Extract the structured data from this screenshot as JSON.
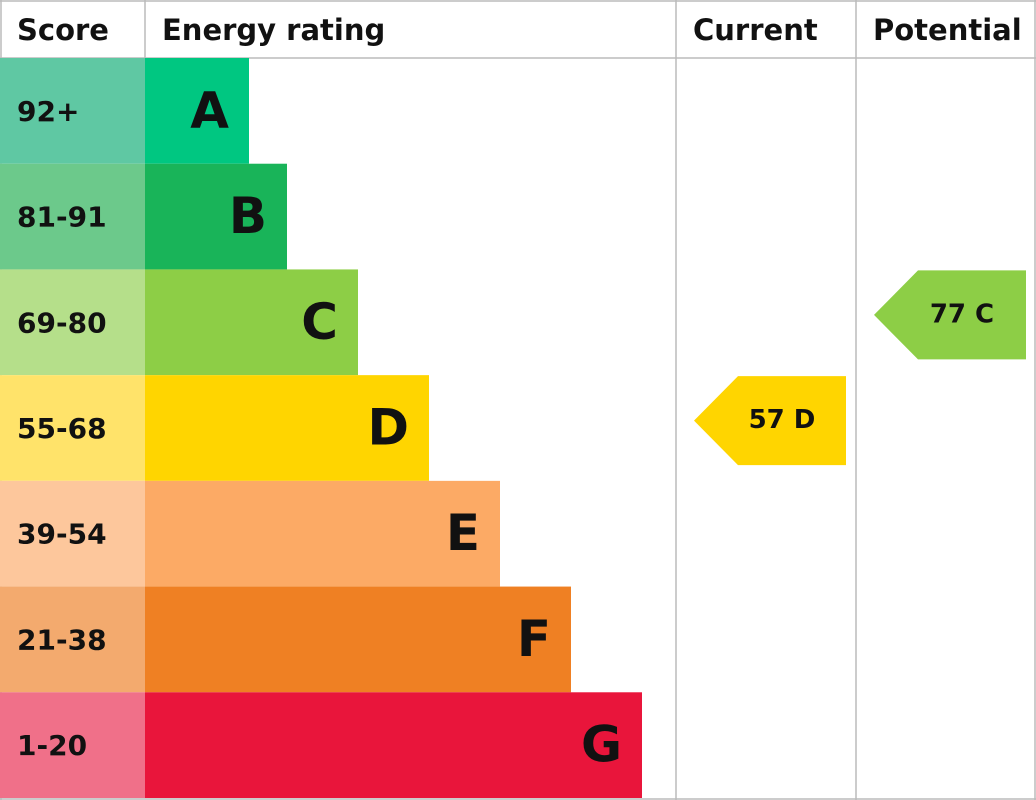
{
  "header": {
    "score": "Score",
    "rating": "Energy rating",
    "current": "Current",
    "potential": "Potential"
  },
  "rows": [
    {
      "score": "92+",
      "band": "A",
      "color": "#00c781",
      "score_color": "#5fc8a3"
    },
    {
      "score": "81-91",
      "band": "B",
      "color": "#19b459",
      "score_color": "#6cc98b"
    },
    {
      "score": "69-80",
      "band": "C",
      "color": "#8dce46",
      "score_color": "#b5df8a"
    },
    {
      "score": "55-68",
      "band": "D",
      "color": "#ffd500",
      "score_color": "#ffe36a"
    },
    {
      "score": "39-54",
      "band": "E",
      "color": "#fcaa65",
      "score_color": "#fdc79c"
    },
    {
      "score": "21-38",
      "band": "F",
      "color": "#ef8023",
      "score_color": "#f3aa6e"
    },
    {
      "score": "1-20",
      "band": "G",
      "color": "#e9153b",
      "score_color": "#f07089"
    }
  ],
  "current": {
    "label": "57 D",
    "band": "D"
  },
  "potential": {
    "label": "77 C",
    "band": "C"
  }
}
